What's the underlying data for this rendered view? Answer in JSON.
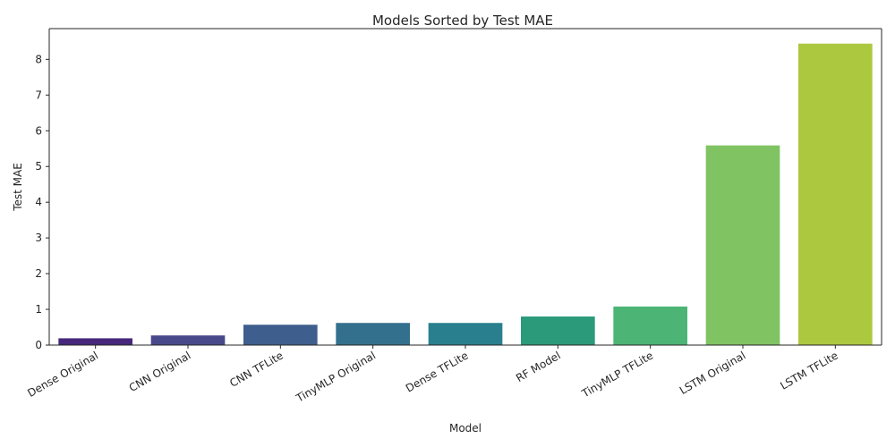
{
  "chart_data": {
    "type": "bar",
    "title": "Models Sorted by Test MAE",
    "xlabel": "Model",
    "ylabel": "Test MAE",
    "categories": [
      "Dense Original",
      "CNN Original",
      "CNN TFLite",
      "TinyMLP Original",
      "Dense TFLite",
      "RF Model",
      "TinyMLP TFLite",
      "LSTM Original",
      "LSTM TFLite"
    ],
    "values": [
      0.19,
      0.27,
      0.57,
      0.62,
      0.62,
      0.8,
      1.08,
      5.59,
      8.44
    ],
    "colors": [
      "#46287a",
      "#47498a",
      "#3e5f8e",
      "#33708d",
      "#2a7f8e",
      "#2b9a7b",
      "#4cb576",
      "#80c362",
      "#acc83f"
    ],
    "ylim": [
      0,
      8.86
    ],
    "yticks": [
      0,
      1,
      2,
      3,
      4,
      5,
      6,
      7,
      8
    ],
    "grid": false,
    "legend": "none"
  }
}
